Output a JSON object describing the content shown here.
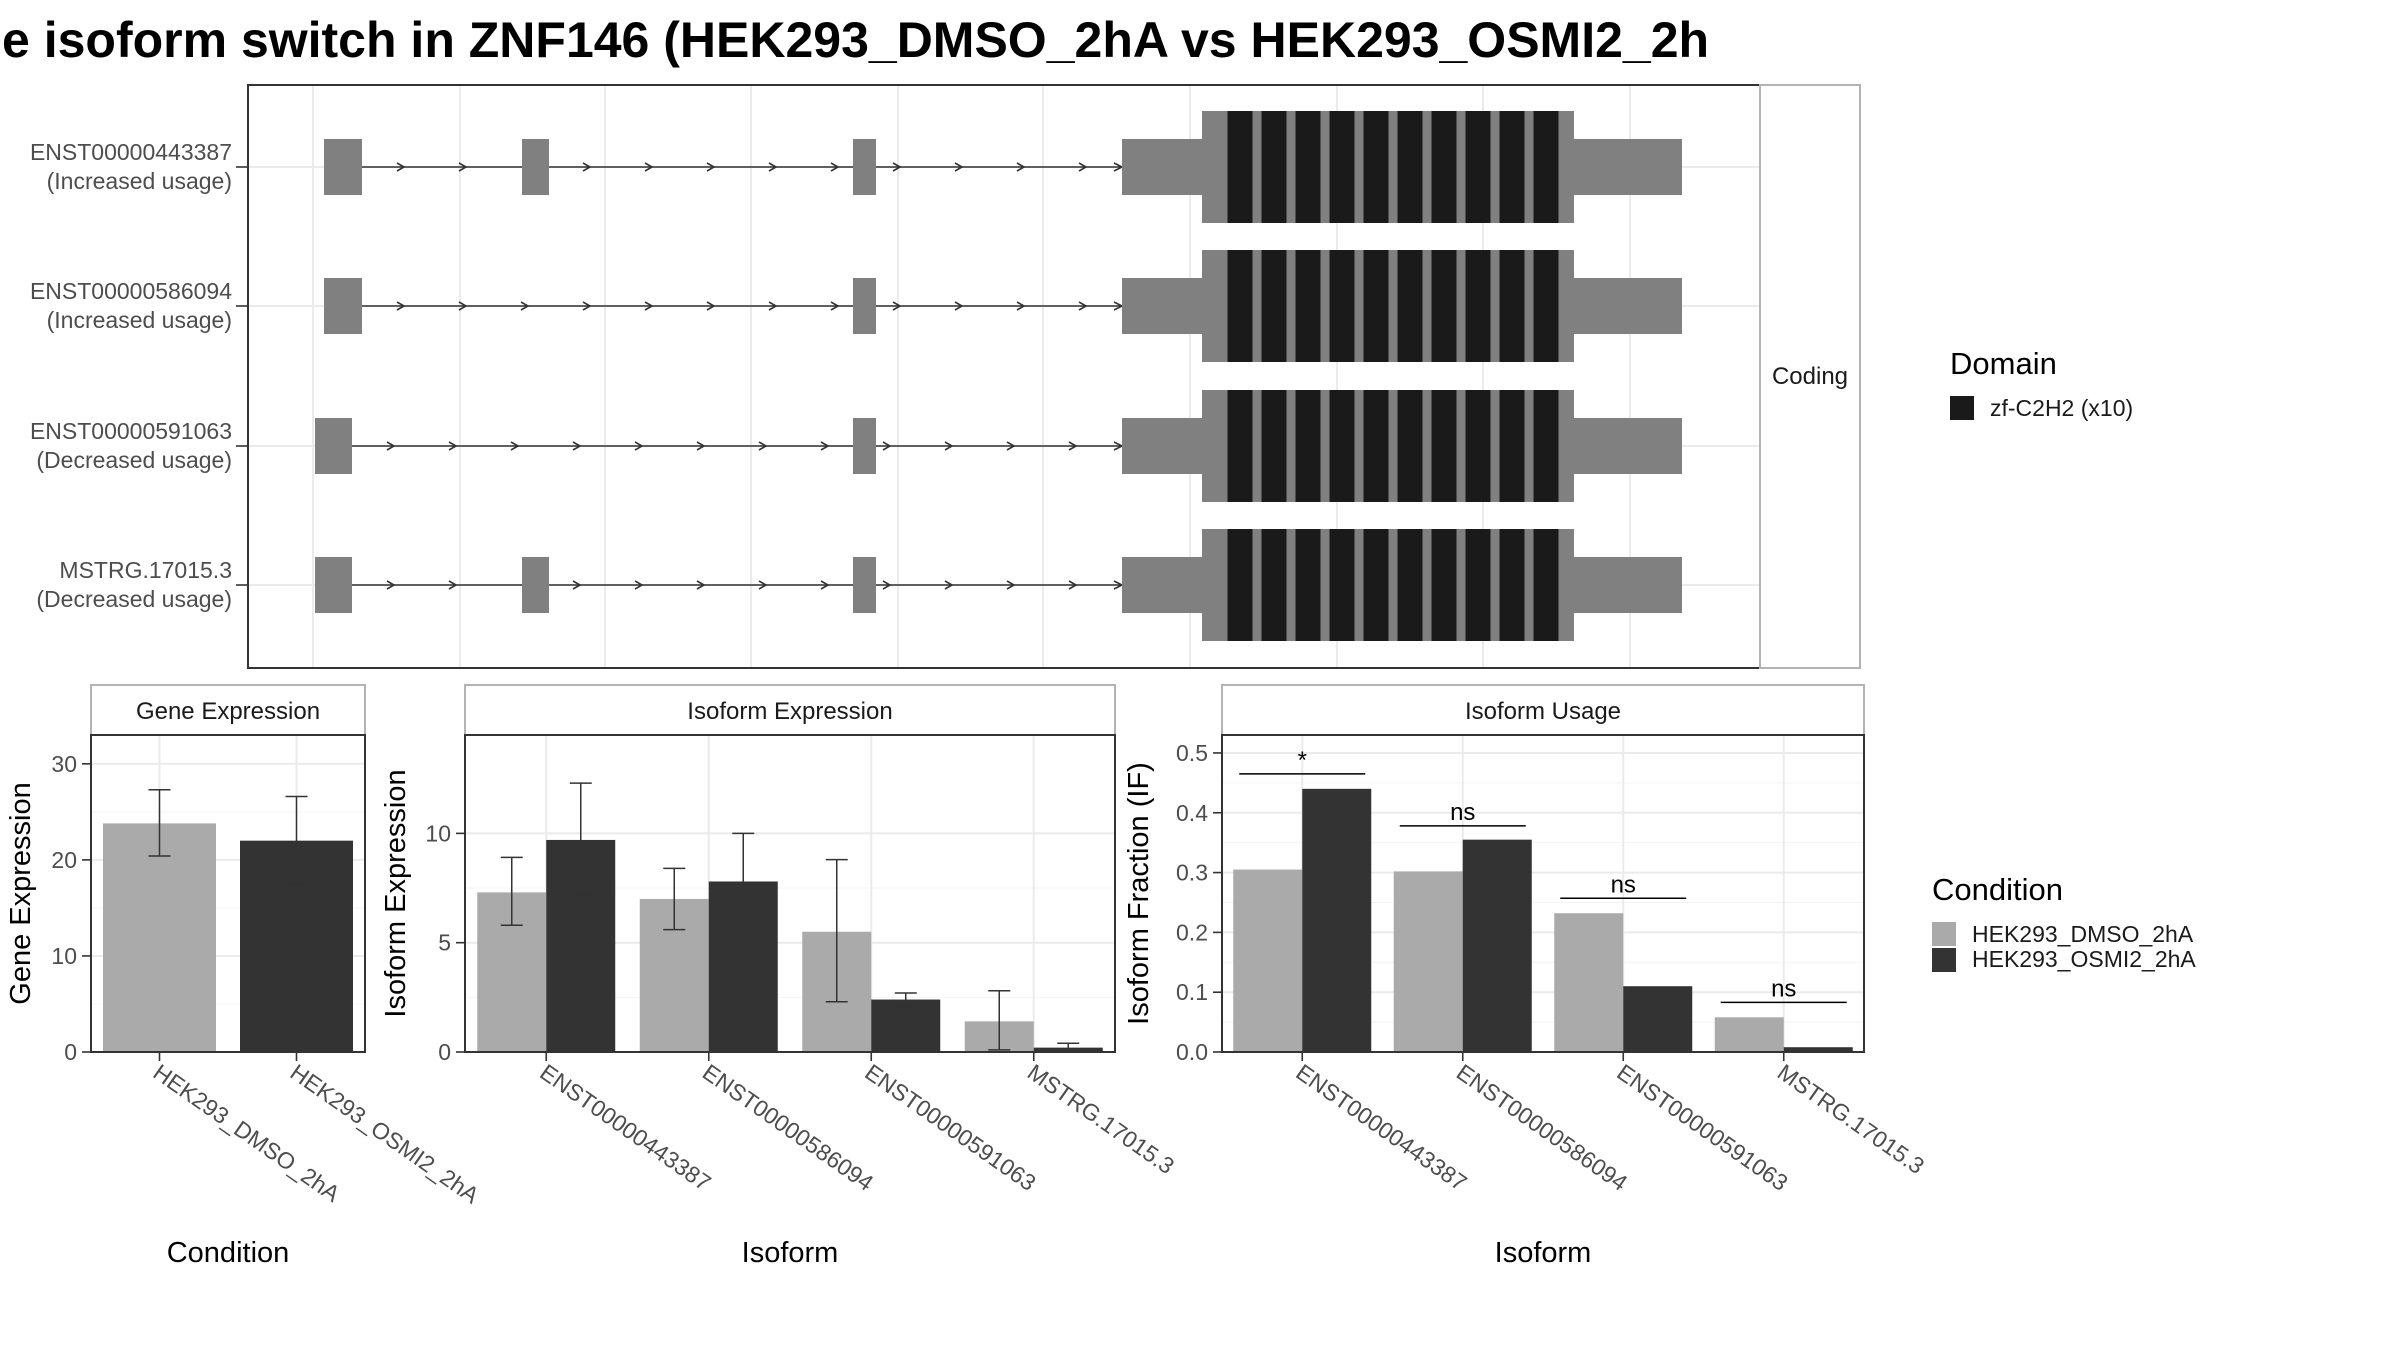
{
  "title": "e isoform switch in ZNF146 (HEK293_DMSO_2hA vs HEK293_OSMI2_2h",
  "colors": {
    "exon": "#808080",
    "domain": "#1a1a1a",
    "dmso": "#aaaaaa",
    "osmi2": "#333333",
    "grid": "#ebebeb",
    "panel_border": "#333333",
    "strip_border": "#b3b3b3"
  },
  "transcript_panel": {
    "strip_label": "Coding",
    "transcripts": [
      {
        "id": "ENST00000443387",
        "label": "(Increased usage)",
        "small_exons": [
          1,
          2,
          3
        ]
      },
      {
        "id": "ENST00000586094",
        "label": "(Increased usage)",
        "small_exons": [
          1,
          3
        ]
      },
      {
        "id": "ENST00000591063",
        "label": "(Decreased usage)",
        "small_exons": [
          0,
          3
        ]
      },
      {
        "id": "MSTRG.17015.3",
        "label": "(Decreased usage)",
        "small_exons": [
          0,
          2,
          3
        ]
      }
    ],
    "domain_legend": {
      "title": "Domain",
      "entries": [
        "zf-C2H2 (x10)"
      ]
    }
  },
  "condition_legend": {
    "title": "Condition",
    "entries": [
      "HEK293_DMSO_2hA",
      "HEK293_OSMI2_2hA"
    ]
  },
  "chart_data": [
    {
      "type": "bar",
      "title": "Gene Expression",
      "xlabel": "Condition",
      "ylabel": "Gene Expression",
      "ylim": [
        0,
        33
      ],
      "yticks": [
        0,
        10,
        20,
        30
      ],
      "categories": [
        "HEK293_DMSO_2hA",
        "HEK293_OSMI2_2hA"
      ],
      "series": [
        {
          "name": "HEK293_DMSO_2hA",
          "values": [
            23.8,
            null
          ],
          "err_low": [
            20.4,
            null
          ],
          "err_high": [
            27.3,
            null
          ]
        },
        {
          "name": "HEK293_OSMI2_2hA",
          "values": [
            null,
            22.0
          ],
          "err_low": [
            null,
            17.5
          ],
          "err_high": [
            null,
            26.6
          ]
        }
      ],
      "grid": true
    },
    {
      "type": "bar",
      "title": "Isoform Expression",
      "xlabel": "Isoform",
      "ylabel": "Isoform Expression",
      "ylim": [
        0,
        14.5
      ],
      "yticks": [
        0,
        5,
        10
      ],
      "categories": [
        "ENST00000443387",
        "ENST00000586094",
        "ENST00000591063",
        "MSTRG.17015.3"
      ],
      "series": [
        {
          "name": "HEK293_DMSO_2hA",
          "values": [
            7.3,
            7.0,
            5.5,
            1.4
          ],
          "err_low": [
            5.8,
            5.6,
            2.3,
            0.1
          ],
          "err_high": [
            8.9,
            8.4,
            8.8,
            2.8
          ]
        },
        {
          "name": "HEK293_OSMI2_2hA",
          "values": [
            9.7,
            7.8,
            2.4,
            0.2
          ],
          "err_low": [
            7.2,
            5.7,
            2.1,
            0.0
          ],
          "err_high": [
            12.3,
            10.0,
            2.7,
            0.4
          ]
        }
      ],
      "grid": true
    },
    {
      "type": "bar",
      "title": "Isoform Usage",
      "xlabel": "Isoform",
      "ylabel": "Isoform Fraction (IF)",
      "ylim": [
        0,
        0.53
      ],
      "yticks": [
        0.0,
        0.1,
        0.2,
        0.3,
        0.4,
        0.5
      ],
      "ytick_labels": [
        "0.0",
        "0.1",
        "0.2",
        "0.3",
        "0.4",
        "0.5"
      ],
      "categories": [
        "ENST00000443387",
        "ENST00000586094",
        "ENST00000591063",
        "MSTRG.17015.3"
      ],
      "series": [
        {
          "name": "HEK293_DMSO_2hA",
          "values": [
            0.305,
            0.302,
            0.232,
            0.058
          ]
        },
        {
          "name": "HEK293_OSMI2_2hA",
          "values": [
            0.44,
            0.355,
            0.11,
            0.008
          ]
        }
      ],
      "significance": [
        {
          "label": "*",
          "y": 0.465
        },
        {
          "label": "ns",
          "y": 0.378
        },
        {
          "label": "ns",
          "y": 0.257
        },
        {
          "label": "ns",
          "y": 0.083
        }
      ],
      "grid": true
    }
  ]
}
